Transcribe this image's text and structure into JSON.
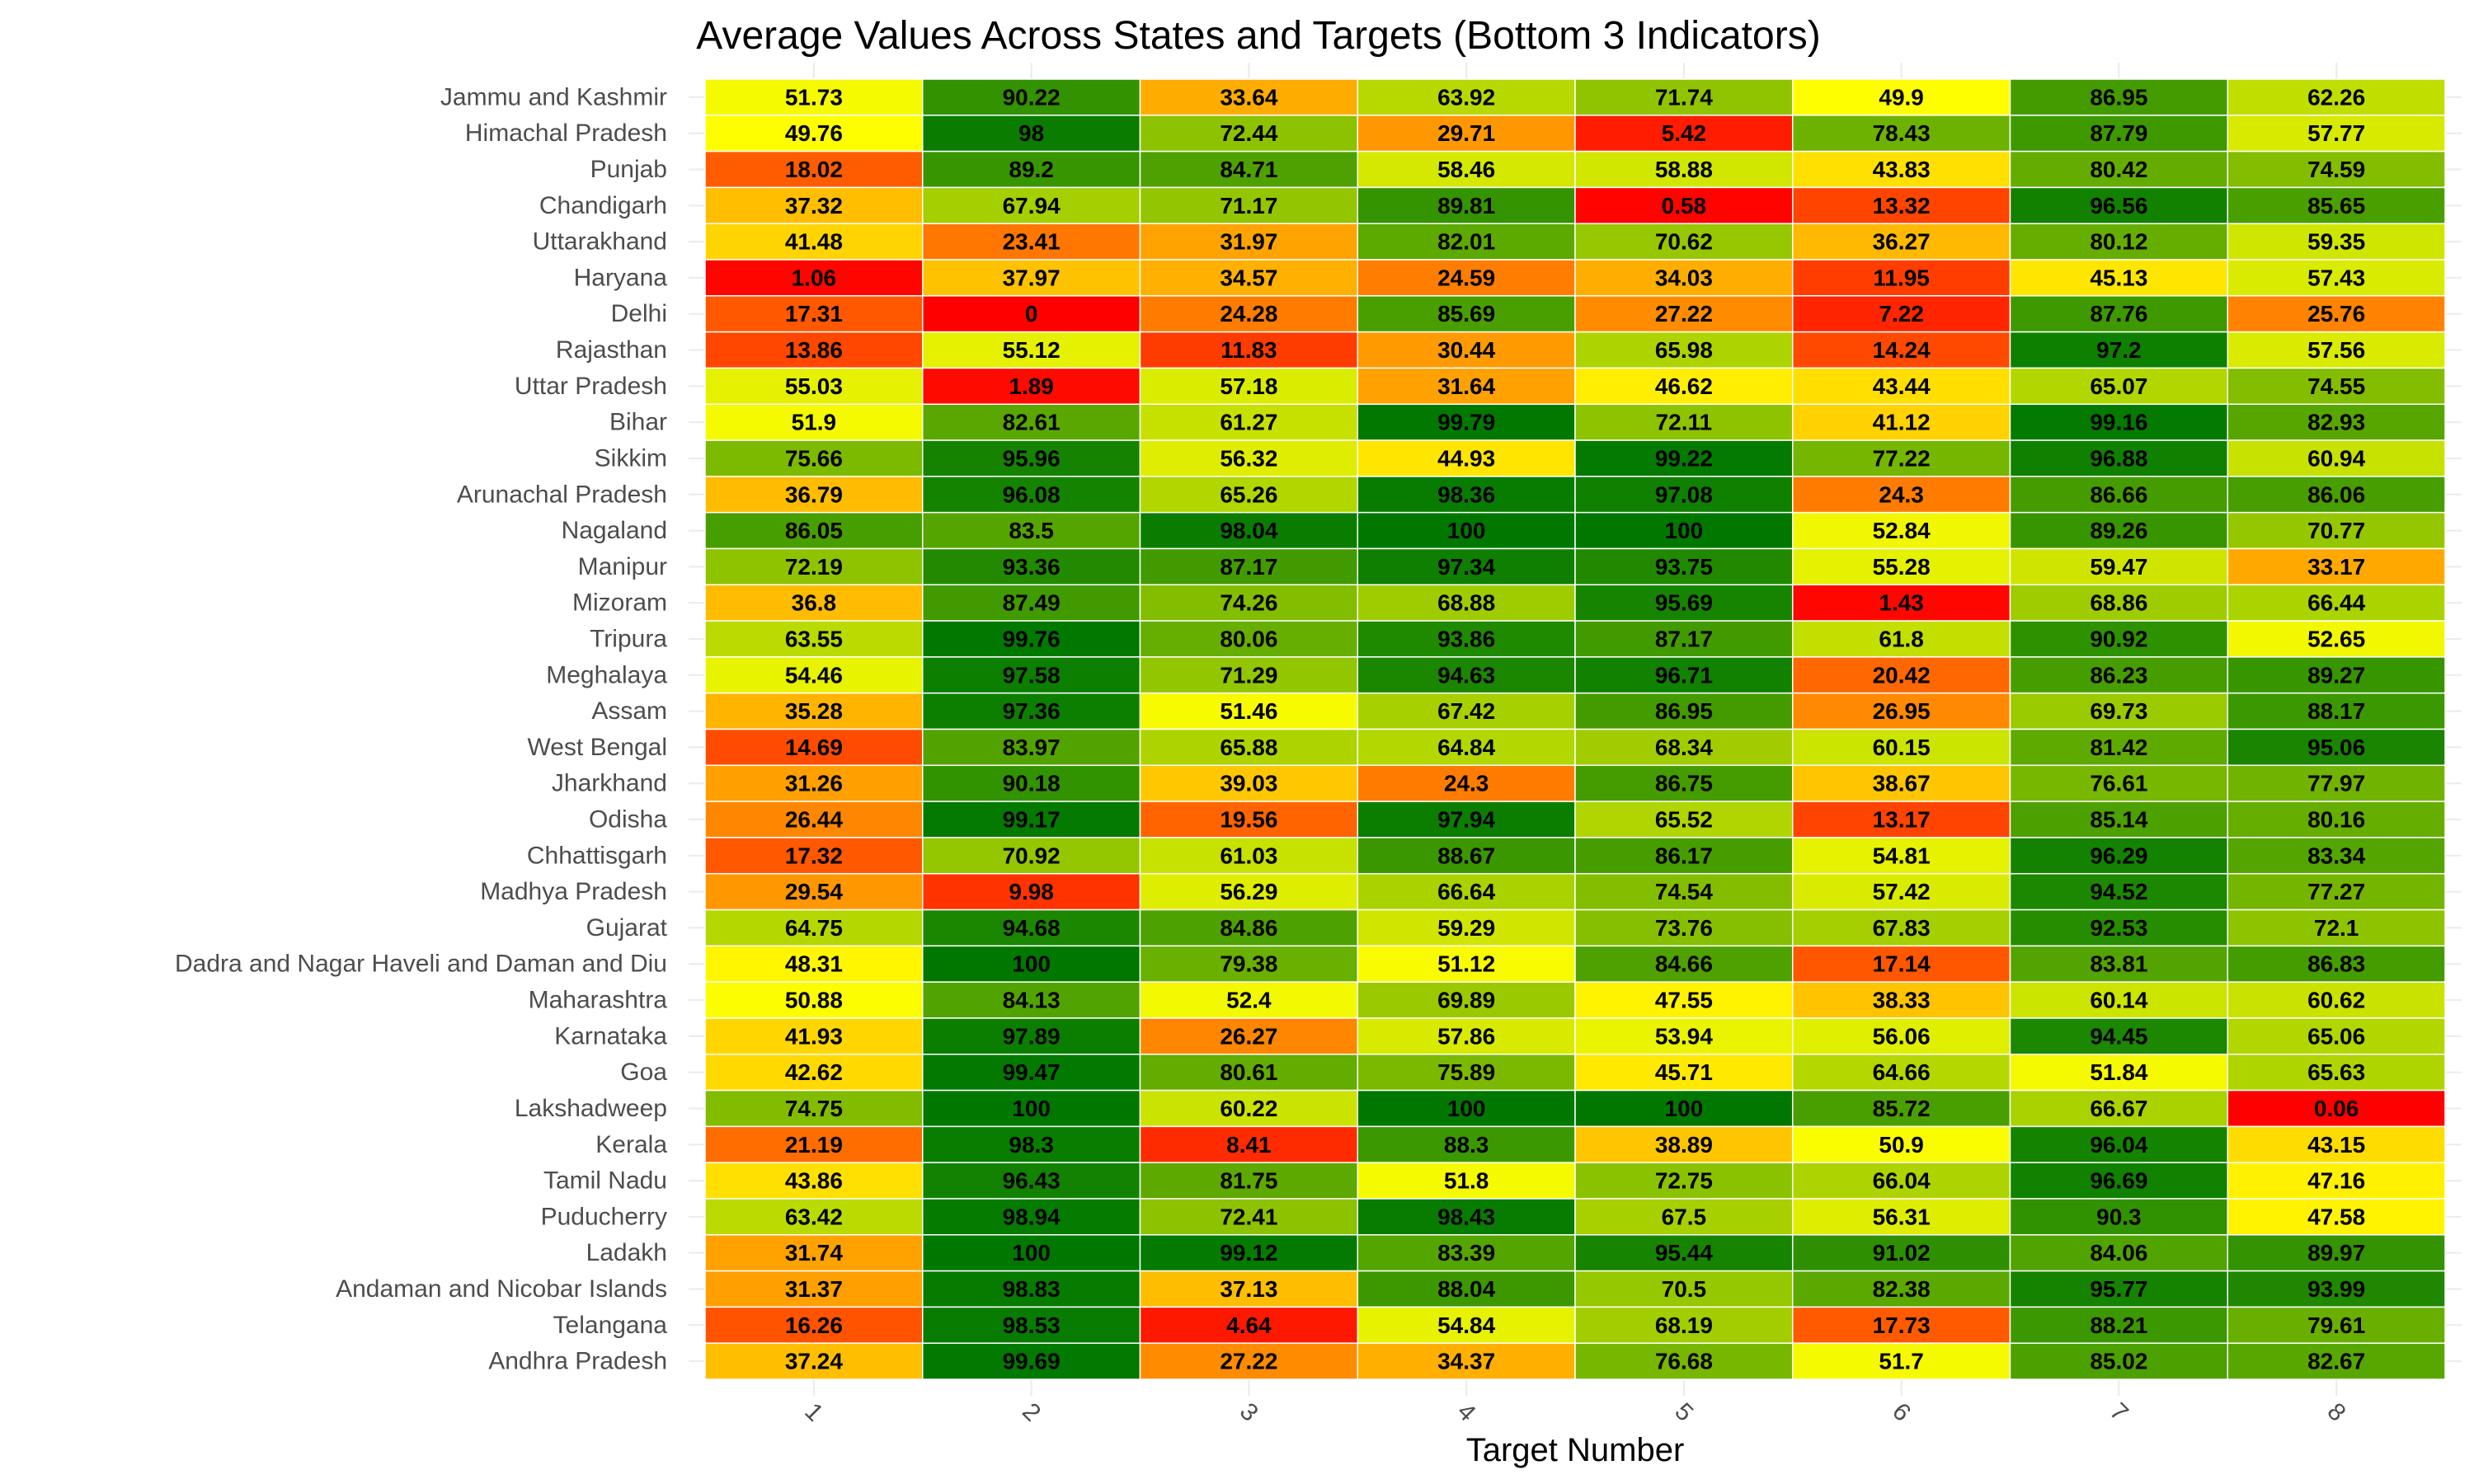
{
  "chart_data": {
    "type": "heatmap",
    "title": "Average Values Across States and Targets (Bottom 3 Indicators)",
    "xlabel": "Target Number",
    "ylabel": "",
    "x": [
      "1",
      "2",
      "3",
      "4",
      "5",
      "6",
      "7",
      "8"
    ],
    "y": [
      "Jammu and Kashmir",
      "Himachal Pradesh",
      "Punjab",
      "Chandigarh",
      "Uttarakhand",
      "Haryana",
      "Delhi",
      "Rajasthan",
      "Uttar Pradesh",
      "Bihar",
      "Sikkim",
      "Arunachal Pradesh",
      "Nagaland",
      "Manipur",
      "Mizoram",
      "Tripura",
      "Meghalaya",
      "Assam",
      "West Bengal",
      "Jharkhand",
      "Odisha",
      "Chhattisgarh",
      "Madhya Pradesh",
      "Gujarat",
      "Dadra and Nagar Haveli and Daman and Diu",
      "Maharashtra",
      "Karnataka",
      "Goa",
      "Lakshadweep",
      "Kerala",
      "Tamil Nadu",
      "Puducherry",
      "Ladakh",
      "Andaman and Nicobar Islands",
      "Telangana",
      "Andhra Pradesh"
    ],
    "values": [
      [
        "51.73",
        "90.22",
        "33.64",
        "63.92",
        "71.74",
        "49.9",
        "86.95",
        "62.26"
      ],
      [
        "49.76",
        "98",
        "72.44",
        "29.71",
        "5.42",
        "78.43",
        "87.79",
        "57.77"
      ],
      [
        "18.02",
        "89.2",
        "84.71",
        "58.46",
        "58.88",
        "43.83",
        "80.42",
        "74.59"
      ],
      [
        "37.32",
        "67.94",
        "71.17",
        "89.81",
        "0.58",
        "13.32",
        "96.56",
        "85.65"
      ],
      [
        "41.48",
        "23.41",
        "31.97",
        "82.01",
        "70.62",
        "36.27",
        "80.12",
        "59.35"
      ],
      [
        "1.06",
        "37.97",
        "34.57",
        "24.59",
        "34.03",
        "11.95",
        "45.13",
        "57.43"
      ],
      [
        "17.31",
        "0",
        "24.28",
        "85.69",
        "27.22",
        "7.22",
        "87.76",
        "25.76"
      ],
      [
        "13.86",
        "55.12",
        "11.83",
        "30.44",
        "65.98",
        "14.24",
        "97.2",
        "57.56"
      ],
      [
        "55.03",
        "1.89",
        "57.18",
        "31.64",
        "46.62",
        "43.44",
        "65.07",
        "74.55"
      ],
      [
        "51.9",
        "82.61",
        "61.27",
        "99.79",
        "72.11",
        "41.12",
        "99.16",
        "82.93"
      ],
      [
        "75.66",
        "95.96",
        "56.32",
        "44.93",
        "99.22",
        "77.22",
        "96.88",
        "60.94"
      ],
      [
        "36.79",
        "96.08",
        "65.26",
        "98.36",
        "97.08",
        "24.3",
        "86.66",
        "86.06"
      ],
      [
        "86.05",
        "83.5",
        "98.04",
        "100",
        "100",
        "52.84",
        "89.26",
        "70.77"
      ],
      [
        "72.19",
        "93.36",
        "87.17",
        "97.34",
        "93.75",
        "55.28",
        "59.47",
        "33.17"
      ],
      [
        "36.8",
        "87.49",
        "74.26",
        "68.88",
        "95.69",
        "1.43",
        "68.86",
        "66.44"
      ],
      [
        "63.55",
        "99.76",
        "80.06",
        "93.86",
        "87.17",
        "61.8",
        "90.92",
        "52.65"
      ],
      [
        "54.46",
        "97.58",
        "71.29",
        "94.63",
        "96.71",
        "20.42",
        "86.23",
        "89.27"
      ],
      [
        "35.28",
        "97.36",
        "51.46",
        "67.42",
        "86.95",
        "26.95",
        "69.73",
        "88.17"
      ],
      [
        "14.69",
        "83.97",
        "65.88",
        "64.84",
        "68.34",
        "60.15",
        "81.42",
        "95.06"
      ],
      [
        "31.26",
        "90.18",
        "39.03",
        "24.3",
        "86.75",
        "38.67",
        "76.61",
        "77.97"
      ],
      [
        "26.44",
        "99.17",
        "19.56",
        "97.94",
        "65.52",
        "13.17",
        "85.14",
        "80.16"
      ],
      [
        "17.32",
        "70.92",
        "61.03",
        "88.67",
        "86.17",
        "54.81",
        "96.29",
        "83.34"
      ],
      [
        "29.54",
        "9.98",
        "56.29",
        "66.64",
        "74.54",
        "57.42",
        "94.52",
        "77.27"
      ],
      [
        "64.75",
        "94.68",
        "84.86",
        "59.29",
        "73.76",
        "67.83",
        "92.53",
        "72.1"
      ],
      [
        "48.31",
        "100",
        "79.38",
        "51.12",
        "84.66",
        "17.14",
        "83.81",
        "86.83"
      ],
      [
        "50.88",
        "84.13",
        "52.4",
        "69.89",
        "47.55",
        "38.33",
        "60.14",
        "60.62"
      ],
      [
        "41.93",
        "97.89",
        "26.27",
        "57.86",
        "53.94",
        "56.06",
        "94.45",
        "65.06"
      ],
      [
        "42.62",
        "99.47",
        "80.61",
        "75.89",
        "45.71",
        "64.66",
        "51.84",
        "65.63"
      ],
      [
        "74.75",
        "100",
        "60.22",
        "100",
        "100",
        "85.72",
        "66.67",
        "0.06"
      ],
      [
        "21.19",
        "98.3",
        "8.41",
        "88.3",
        "38.89",
        "50.9",
        "96.04",
        "43.15"
      ],
      [
        "43.86",
        "96.43",
        "81.75",
        "51.8",
        "72.75",
        "66.04",
        "96.69",
        "47.16"
      ],
      [
        "63.42",
        "98.94",
        "72.41",
        "98.43",
        "67.5",
        "56.31",
        "90.3",
        "47.58"
      ],
      [
        "31.74",
        "100",
        "99.12",
        "83.39",
        "95.44",
        "91.02",
        "84.06",
        "89.97"
      ],
      [
        "31.37",
        "98.83",
        "37.13",
        "88.04",
        "70.5",
        "82.38",
        "95.77",
        "93.99"
      ],
      [
        "16.26",
        "98.53",
        "4.64",
        "54.84",
        "68.19",
        "17.73",
        "88.21",
        "79.61"
      ],
      [
        "37.24",
        "99.69",
        "27.22",
        "34.37",
        "76.68",
        "51.7",
        "85.02",
        "82.67"
      ]
    ],
    "color_scale": {
      "min": 0,
      "mid": 50,
      "max": 100,
      "low_color": "#ff0000",
      "mid_color": "#ffff00",
      "high_color": "#007800"
    },
    "legend": "none",
    "grid": true
  }
}
